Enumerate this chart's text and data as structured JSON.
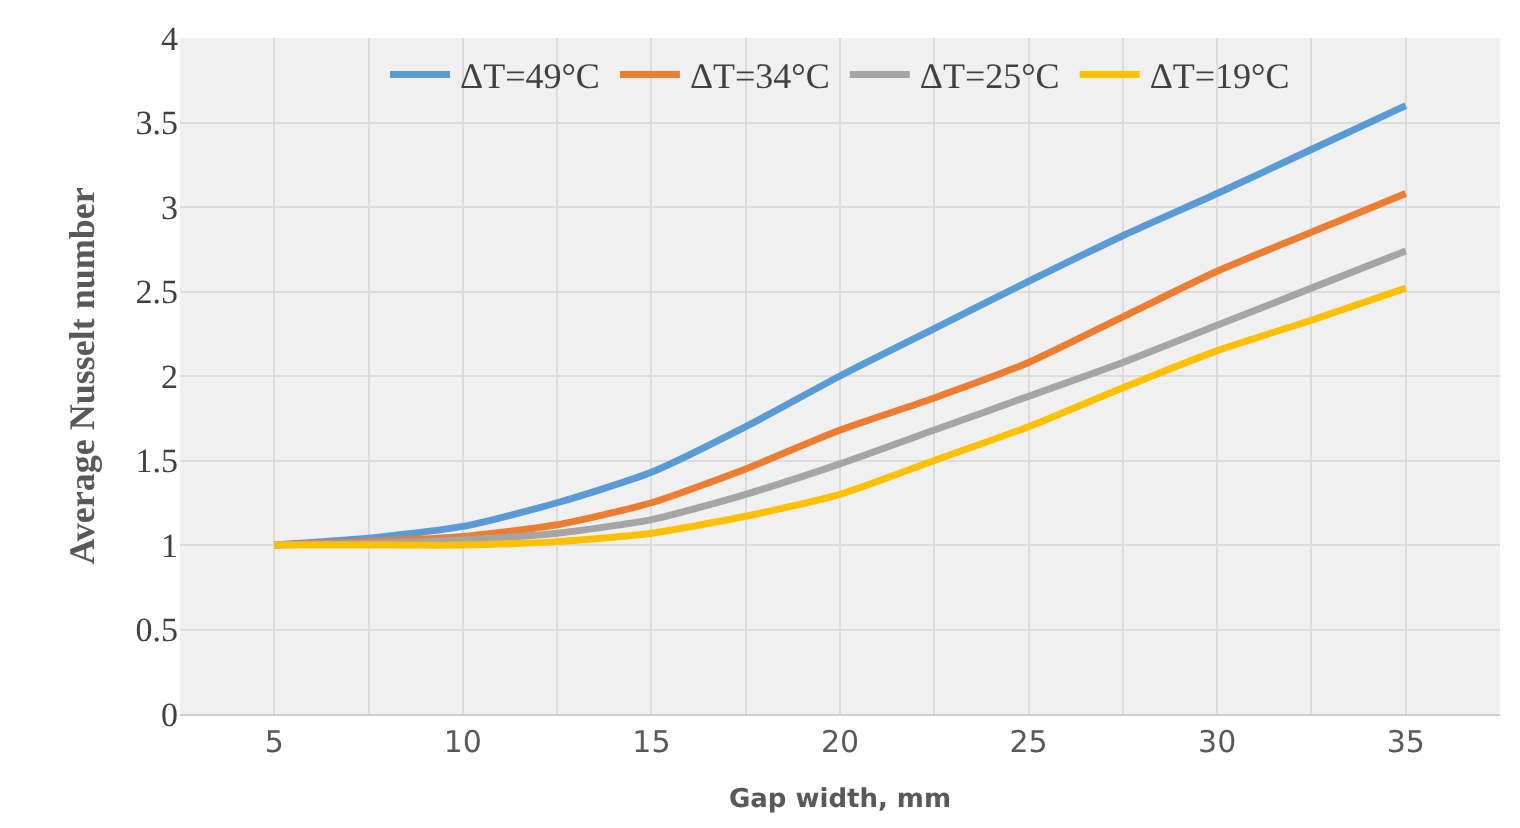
{
  "chart_data": {
    "type": "line",
    "xlabel": "Gap width, mm",
    "ylabel": "Average Nusselt number",
    "x": [
      5,
      7.5,
      10,
      12.5,
      15,
      17.5,
      20,
      22.5,
      25,
      27.5,
      30,
      32.5,
      35
    ],
    "series": [
      {
        "name": "ΔT=49°C",
        "color": "#5b9bd5",
        "values": [
          1,
          1.04,
          1.11,
          1.25,
          1.43,
          1.7,
          2.0,
          2.28,
          2.56,
          2.83,
          3.08,
          3.34,
          3.6
        ]
      },
      {
        "name": "ΔT=34°C",
        "color": "#ed7d31",
        "values": [
          1,
          1.02,
          1.05,
          1.12,
          1.25,
          1.45,
          1.68,
          1.87,
          2.08,
          2.35,
          2.62,
          2.85,
          3.08
        ]
      },
      {
        "name": "ΔT=25°C",
        "color": "#a5a5a5",
        "values": [
          1,
          1.01,
          1.03,
          1.07,
          1.15,
          1.3,
          1.48,
          1.68,
          1.88,
          2.08,
          2.3,
          2.52,
          2.74
        ]
      },
      {
        "name": "ΔT=19°C",
        "color": "#ffc000",
        "values": [
          1,
          1.0,
          1.0,
          1.02,
          1.07,
          1.17,
          1.3,
          1.5,
          1.7,
          1.93,
          2.15,
          2.33,
          2.52
        ]
      }
    ],
    "xlim": [
      2.5,
      37.5
    ],
    "xticks": [
      {
        "value": 2.5,
        "label": null
      },
      5,
      {
        "value": 7.5,
        "label": null
      },
      10,
      {
        "value": 12.5,
        "label": null
      },
      15,
      {
        "value": 17.5,
        "label": null
      },
      20,
      {
        "value": 22.5,
        "label": null
      },
      25,
      {
        "value": 27.5,
        "label": null
      },
      30,
      {
        "value": 32.5,
        "label": null
      },
      35,
      {
        "value": 37.5,
        "label": null
      }
    ],
    "ylim": [
      0,
      4
    ],
    "yticks": [
      0,
      0.5,
      1,
      1.5,
      2,
      2.5,
      3,
      3.5,
      4
    ],
    "grid": true,
    "legend": "top",
    "marker": "none",
    "line_style": "solid"
  }
}
